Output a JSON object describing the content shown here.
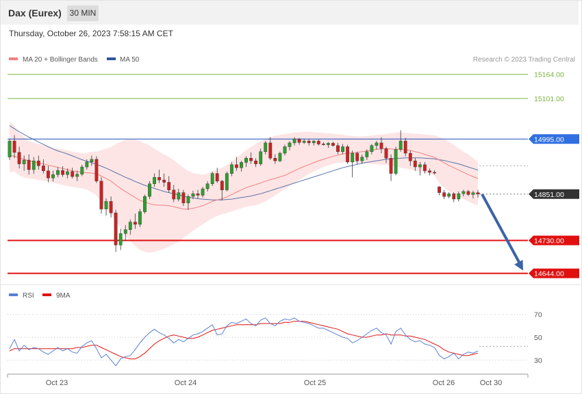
{
  "header": {
    "instrument": "Dax (Eurex)",
    "timeframe": "30 MIN"
  },
  "datetime": "Thursday, October 26, 2023 7:58:15 AM CET",
  "credit": "Research © 2023 Trading Central",
  "colors": {
    "ma20": "#f08080",
    "ma50": "#2f5597",
    "band_fill": "#fde0e0",
    "up": "#2d9f2d",
    "down": "#cc2222",
    "target_line": "#7cb342",
    "pivot_line": "#1f4fbf",
    "support_line": "#e01010",
    "rsi": "#5b7fd6",
    "rsi_ma": "#e01010",
    "arrow": "#3a63a8"
  },
  "chart_data": [
    {
      "type": "candlestick",
      "legend": [
        {
          "name": "MA 20 + Bollinger Bands",
          "color": "#f08080"
        },
        {
          "name": "MA 50",
          "color": "#2f5597"
        }
      ],
      "x_labels": [
        "Oct 23",
        "Oct 24",
        "Oct 25",
        "Oct 26",
        "Oct 30"
      ],
      "ylim": [
        14620,
        15185
      ],
      "levels": [
        {
          "value": 15164,
          "label": "15164.00",
          "kind": "target"
        },
        {
          "value": 15101,
          "label": "15101.00",
          "kind": "target"
        },
        {
          "value": 14995,
          "label": "14995.00",
          "kind": "pivot"
        },
        {
          "value": 14851,
          "label": "14851.00",
          "kind": "last"
        },
        {
          "value": 14730,
          "label": "14730.00",
          "kind": "support"
        },
        {
          "value": 14644,
          "label": "14644.00",
          "kind": "support"
        }
      ],
      "forecast": {
        "from": 14851,
        "to": 14644
      },
      "ohlc": [
        [
          14948,
          14995,
          14940,
          14990
        ],
        [
          14990,
          15005,
          14945,
          14960
        ],
        [
          14960,
          14975,
          14918,
          14930
        ],
        [
          14930,
          14952,
          14912,
          14940
        ],
        [
          14940,
          14955,
          14902,
          14915
        ],
        [
          14915,
          14948,
          14904,
          14938
        ],
        [
          14938,
          14952,
          14915,
          14925
        ],
        [
          14925,
          14942,
          14905,
          14912
        ],
        [
          14912,
          14925,
          14882,
          14893
        ],
        [
          14893,
          14912,
          14884,
          14902
        ],
        [
          14902,
          14922,
          14895,
          14913
        ],
        [
          14913,
          14924,
          14896,
          14902
        ],
        [
          14902,
          14918,
          14892,
          14910
        ],
        [
          14910,
          14920,
          14892,
          14897
        ],
        [
          14897,
          14912,
          14885,
          14903
        ],
        [
          14903,
          14928,
          14898,
          14922
        ],
        [
          14922,
          14942,
          14915,
          14935
        ],
        [
          14935,
          14952,
          14925,
          14942
        ],
        [
          14942,
          14950,
          14880,
          14885
        ],
        [
          14885,
          14895,
          14800,
          14812
        ],
        [
          14812,
          14840,
          14795,
          14832
        ],
        [
          14832,
          14845,
          14790,
          14802
        ],
        [
          14802,
          14810,
          14700,
          14718
        ],
        [
          14718,
          14760,
          14705,
          14748
        ],
        [
          14748,
          14770,
          14728,
          14758
        ],
        [
          14758,
          14785,
          14745,
          14778
        ],
        [
          14778,
          14800,
          14760,
          14772
        ],
        [
          14772,
          14812,
          14765,
          14805
        ],
        [
          14805,
          14850,
          14800,
          14845
        ],
        [
          14845,
          14885,
          14838,
          14878
        ],
        [
          14878,
          14905,
          14870,
          14895
        ],
        [
          14895,
          14915,
          14880,
          14888
        ],
        [
          14888,
          14905,
          14870,
          14882
        ],
        [
          14882,
          14898,
          14855,
          14862
        ],
        [
          14862,
          14875,
          14830,
          14838
        ],
        [
          14838,
          14865,
          14832,
          14855
        ],
        [
          14855,
          14862,
          14820,
          14828
        ],
        [
          14828,
          14850,
          14810,
          14845
        ],
        [
          14845,
          14860,
          14838,
          14852
        ],
        [
          14852,
          14862,
          14840,
          14848
        ],
        [
          14848,
          14870,
          14842,
          14865
        ],
        [
          14865,
          14885,
          14858,
          14878
        ],
        [
          14878,
          14910,
          14872,
          14905
        ],
        [
          14905,
          14920,
          14880,
          14885
        ],
        [
          14885,
          14888,
          14835,
          14862
        ],
        [
          14862,
          14910,
          14858,
          14905
        ],
        [
          14905,
          14935,
          14898,
          14928
        ],
        [
          14928,
          14948,
          14912,
          14920
        ],
        [
          14920,
          14938,
          14910,
          14934
        ],
        [
          14934,
          14950,
          14922,
          14945
        ],
        [
          14945,
          14960,
          14930,
          14938
        ],
        [
          14938,
          14945,
          14922,
          14930
        ],
        [
          14930,
          14970,
          14925,
          14962
        ],
        [
          14962,
          14990,
          14955,
          14985
        ],
        [
          14985,
          15000,
          14940,
          14945
        ],
        [
          14945,
          14955,
          14930,
          14938
        ],
        [
          14938,
          14962,
          14935,
          14958
        ],
        [
          14958,
          14980,
          14952,
          14975
        ],
        [
          14975,
          14990,
          14965,
          14985
        ],
        [
          14985,
          15000,
          14978,
          14995
        ],
        [
          14995,
          14998,
          14980,
          14986
        ],
        [
          14986,
          14995,
          14982,
          14990
        ],
        [
          14990,
          14994,
          14978,
          14985
        ],
        [
          14985,
          14992,
          14978,
          14990
        ],
        [
          14990,
          14994,
          14978,
          14982
        ],
        [
          14982,
          14987,
          14978,
          14980
        ],
        [
          14980,
          14987,
          14972,
          14984
        ],
        [
          14984,
          14988,
          14975,
          14978
        ],
        [
          14978,
          14985,
          14955,
          14962
        ],
        [
          14962,
          14982,
          14955,
          14975
        ],
        [
          14975,
          14980,
          14930,
          14935
        ],
        [
          14935,
          14965,
          14895,
          14958
        ],
        [
          14958,
          14962,
          14928,
          14938
        ],
        [
          14938,
          14955,
          14930,
          14948
        ],
        [
          14948,
          14968,
          14940,
          14962
        ],
        [
          14962,
          14982,
          14955,
          14978
        ],
        [
          14978,
          14990,
          14968,
          14985
        ],
        [
          14985,
          15000,
          14958,
          14970
        ],
        [
          14970,
          14975,
          14932,
          14945
        ],
        [
          14945,
          14955,
          14885,
          14905
        ],
        [
          14905,
          14975,
          14900,
          14968
        ],
        [
          14968,
          15018,
          14962,
          14990
        ],
        [
          14990,
          14998,
          14950,
          14958
        ],
        [
          14958,
          14965,
          14925,
          14938
        ],
        [
          14938,
          14945,
          14912,
          14922
        ],
        [
          14922,
          14935,
          14900,
          14928
        ],
        [
          14928,
          14935,
          14905,
          14912
        ],
        [
          14912,
          14918,
          14900,
          14908
        ],
        [
          14908,
          14914,
          14902,
          14906
        ],
        [
          14870,
          14872,
          14848,
          14855
        ],
        [
          14855,
          14862,
          14838,
          14845
        ],
        [
          14845,
          14856,
          14840,
          14852
        ],
        [
          14852,
          14856,
          14830,
          14838
        ],
        [
          14838,
          14858,
          14832,
          14852
        ],
        [
          14852,
          14862,
          14845,
          14858
        ],
        [
          14858,
          14862,
          14846,
          14850
        ],
        [
          14850,
          14860,
          14840,
          14855
        ],
        [
          14855,
          14862,
          14842,
          14851
        ]
      ],
      "ma20": [
        14952,
        14950,
        14946,
        14942,
        14938,
        14935,
        14932,
        14930,
        14927,
        14924,
        14921,
        14918,
        14915,
        14912,
        14910,
        14908,
        14907,
        14906,
        14904,
        14898,
        14892,
        14885,
        14875,
        14866,
        14858,
        14850,
        14842,
        14835,
        14830,
        14826,
        14823,
        14822,
        14822,
        14821,
        14818,
        14815,
        14812,
        14812,
        14814,
        14817,
        14821,
        14826,
        14832,
        14836,
        14839,
        14844,
        14850,
        14856,
        14862,
        14868,
        14872,
        14876,
        14880,
        14885,
        14889,
        14892,
        14896,
        14900,
        14906,
        14912,
        14918,
        14923,
        14928,
        14933,
        14938,
        14942,
        14946,
        14950,
        14953,
        14956,
        14958,
        14959,
        14960,
        14962,
        14964,
        14966,
        14968,
        14969,
        14970,
        14969,
        14968,
        14968,
        14967,
        14965,
        14962,
        14959,
        14955,
        14951,
        14947,
        14940,
        14933,
        14926,
        14920,
        14914,
        14908,
        14902,
        14897,
        14892
      ],
      "band_upper": [
        15040,
        15030,
        15010,
        15000,
        14990,
        14985,
        14982,
        14980,
        14976,
        14972,
        14970,
        14968,
        14965,
        14962,
        14960,
        14958,
        14958,
        14962,
        14962,
        14966,
        14970,
        14974,
        14982,
        14988,
        14993,
        14994,
        14994,
        14990,
        14984,
        14978,
        14970,
        14962,
        14955,
        14948,
        14940,
        14930,
        14920,
        14912,
        14906,
        14904,
        14902,
        14905,
        14910,
        14915,
        14920,
        14928,
        14936,
        14946,
        14956,
        14966,
        14974,
        14982,
        14990,
        14995,
        15000,
        15003,
        15006,
        15008,
        15010,
        15012,
        15013,
        15014,
        15014,
        15013,
        15012,
        15011,
        15010,
        15009,
        15008,
        15006,
        15004,
        15003,
        15002,
        15002,
        15003,
        15004,
        15006,
        15007,
        15008,
        15010,
        15012,
        15012,
        15011,
        15010,
        15009,
        15008,
        15007,
        15006,
        15005,
        15000,
        14995,
        14988,
        14980,
        14970,
        14962,
        14955,
        14945,
        14935
      ],
      "band_lower": [
        14908,
        14910,
        14900,
        14895,
        14892,
        14890,
        14888,
        14886,
        14884,
        14881,
        14878,
        14875,
        14872,
        14870,
        14868,
        14866,
        14863,
        14856,
        14848,
        14830,
        14818,
        14800,
        14780,
        14760,
        14742,
        14728,
        14715,
        14705,
        14700,
        14698,
        14700,
        14704,
        14708,
        14714,
        14720,
        14726,
        14736,
        14746,
        14755,
        14764,
        14772,
        14780,
        14788,
        14794,
        14798,
        14802,
        14806,
        14810,
        14814,
        14818,
        14820,
        14822,
        14826,
        14832,
        14840,
        14848,
        14856,
        14864,
        14872,
        14880,
        14888,
        14896,
        14904,
        14910,
        14916,
        14922,
        14926,
        14930,
        14933,
        14934,
        14935,
        14934,
        14933,
        14932,
        14931,
        14930,
        14929,
        14928,
        14927,
        14925,
        14923,
        14920,
        14918,
        14915,
        14912,
        14910,
        14907,
        14904,
        14900,
        14880,
        14868,
        14858,
        14850,
        14845,
        14838,
        14832,
        14826,
        14822
      ],
      "ma50": [
        15030,
        15022,
        15014,
        15007,
        15000,
        14994,
        14987,
        14981,
        14975,
        14969,
        14964,
        14960,
        14956,
        14951,
        14946,
        14941,
        14937,
        14933,
        14929,
        14924,
        14919,
        14913,
        14907,
        14901,
        14895,
        14890,
        14884,
        14879,
        14874,
        14870,
        14866,
        14862,
        14858,
        14855,
        14852,
        14849,
        14846,
        14843,
        14841,
        14839,
        14838,
        14837,
        14836,
        14836,
        14836,
        14837,
        14838,
        14840,
        14842,
        14844,
        14846,
        14849,
        14852,
        14856,
        14860,
        14864,
        14868,
        14872,
        14876,
        14880,
        14884,
        14888,
        14892,
        14896,
        14900,
        14904,
        14908,
        14912,
        14916,
        14920,
        14923,
        14926,
        14929,
        14932,
        14934,
        14936,
        14938,
        14940,
        14942,
        14943,
        14944,
        14945,
        14946,
        14946,
        14946,
        14946,
        14945,
        14944,
        14943,
        14941,
        14939,
        14936,
        14933,
        14930,
        14926,
        14922,
        14918,
        14914
      ]
    },
    {
      "type": "line",
      "legend": [
        {
          "name": "RSI",
          "color": "#5b7fd6"
        },
        {
          "name": "9MA",
          "color": "#e01010"
        }
      ],
      "ylim": [
        20,
        80
      ],
      "yticks": [
        30,
        50,
        70
      ],
      "rsi_level": 42,
      "rsi": [
        40,
        48,
        38,
        43,
        39,
        41,
        40,
        37,
        35,
        38,
        41,
        38,
        40,
        37,
        36,
        42,
        45,
        47,
        40,
        32,
        35,
        30,
        25,
        31,
        33,
        34,
        39,
        45,
        50,
        54,
        57,
        54,
        52,
        49,
        45,
        48,
        46,
        49,
        52,
        53,
        55,
        58,
        61,
        52,
        53,
        60,
        63,
        62,
        64,
        66,
        62,
        60,
        65,
        67,
        62,
        60,
        64,
        66,
        65,
        67,
        64,
        63,
        62,
        60,
        58,
        58,
        56,
        54,
        52,
        50,
        49,
        45,
        47,
        50,
        53,
        56,
        58,
        54,
        52,
        44,
        55,
        58,
        52,
        48,
        46,
        47,
        44,
        43,
        41,
        34,
        31,
        33,
        36,
        31,
        35,
        37,
        36,
        38
      ],
      "ma9": [
        38,
        40,
        40,
        40,
        40,
        40,
        40,
        40,
        40,
        40,
        40,
        40,
        40,
        40,
        41,
        41,
        42,
        43,
        43,
        41,
        39,
        37,
        35,
        33,
        32,
        31,
        31,
        33,
        36,
        40,
        44,
        47,
        49,
        51,
        52,
        51,
        50,
        49,
        49,
        50,
        52,
        54,
        56,
        57,
        58,
        59,
        60,
        61,
        61,
        61,
        61,
        61,
        62,
        62,
        62,
        62,
        62,
        63,
        63,
        64,
        64,
        64,
        63,
        62,
        61,
        60,
        59,
        58,
        57,
        55,
        53,
        52,
        51,
        50,
        50,
        51,
        52,
        52,
        53,
        52,
        52,
        52,
        51,
        51,
        50,
        49,
        48,
        46,
        44,
        42,
        39,
        37,
        36,
        35,
        34,
        34,
        35,
        36
      ]
    }
  ]
}
